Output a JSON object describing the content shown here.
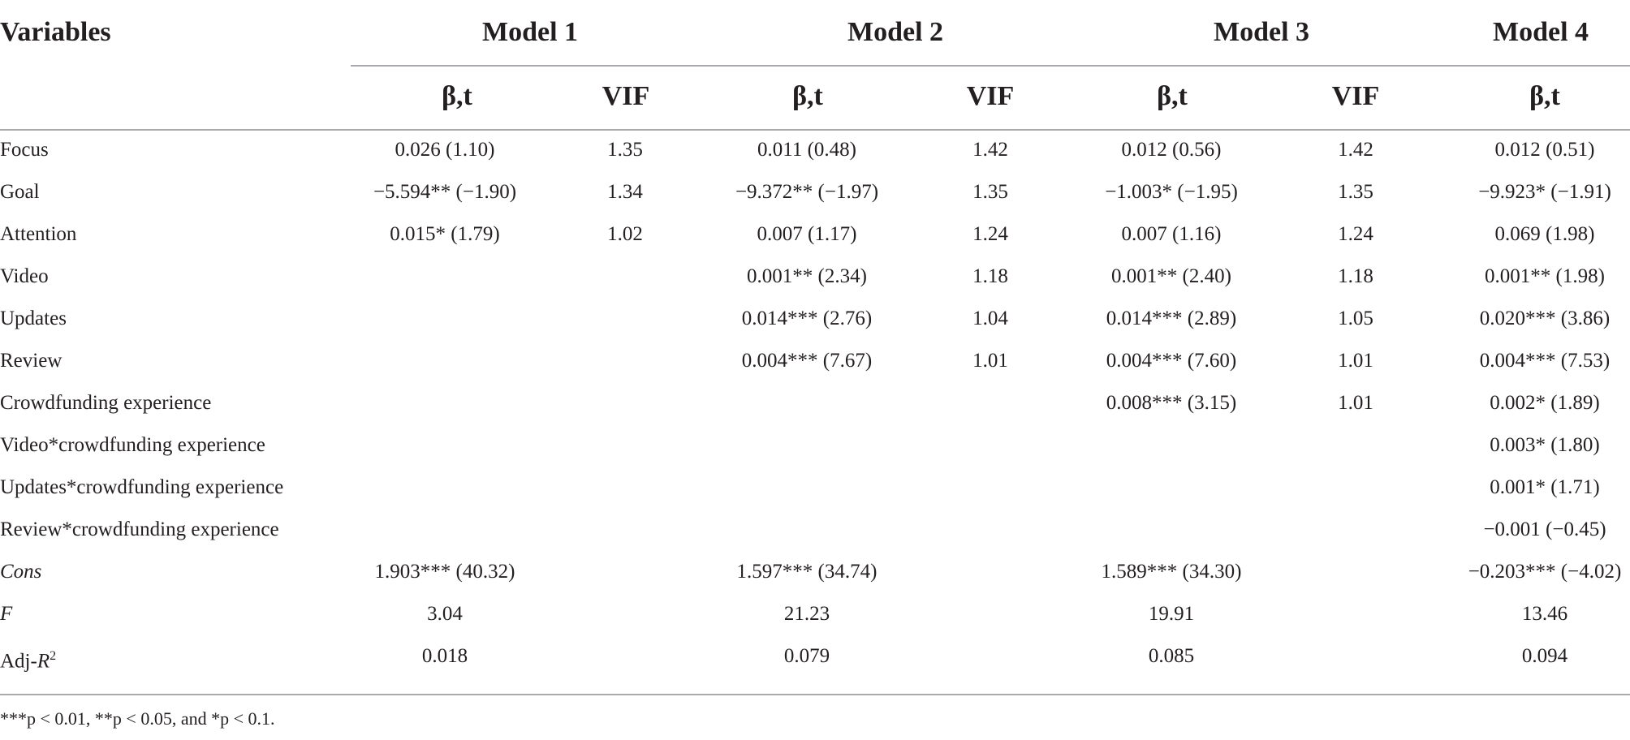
{
  "table": {
    "header": {
      "variables": "Variables",
      "models": [
        "Model 1",
        "Model 2",
        "Model 3",
        "Model 4"
      ],
      "subheaders": [
        "β,t",
        "VIF",
        "β,t",
        "VIF",
        "β,t",
        "VIF",
        "β,t"
      ]
    },
    "rows": [
      {
        "label": "Focus",
        "cells": [
          "0.026 (1.10)",
          "1.35",
          "0.011 (0.48)",
          "1.42",
          "0.012 (0.56)",
          "1.42",
          "0.012 (0.51)"
        ]
      },
      {
        "label": "Goal",
        "cells": [
          "−5.594** (−1.90)",
          "1.34",
          "−9.372** (−1.97)",
          "1.35",
          "−1.003* (−1.95)",
          "1.35",
          "−9.923* (−1.91)"
        ]
      },
      {
        "label": "Attention",
        "cells": [
          "0.015* (1.79)",
          "1.02",
          "0.007 (1.17)",
          "1.24",
          "0.007 (1.16)",
          "1.24",
          "0.069 (1.98)"
        ]
      },
      {
        "label": "Video",
        "cells": [
          "",
          "",
          "0.001** (2.34)",
          "1.18",
          "0.001** (2.40)",
          "1.18",
          "0.001** (1.98)"
        ]
      },
      {
        "label": "Updates",
        "cells": [
          "",
          "",
          "0.014*** (2.76)",
          "1.04",
          "0.014*** (2.89)",
          "1.05",
          "0.020*** (3.86)"
        ]
      },
      {
        "label": "Review",
        "cells": [
          "",
          "",
          "0.004*** (7.67)",
          "1.01",
          "0.004*** (7.60)",
          "1.01",
          "0.004*** (7.53)"
        ]
      },
      {
        "label": "Crowdfunding experience",
        "cells": [
          "",
          "",
          "",
          "",
          "0.008*** (3.15)",
          "1.01",
          "0.002* (1.89)"
        ]
      },
      {
        "label": "Video*crowdfunding experience",
        "cells": [
          "",
          "",
          "",
          "",
          "",
          "",
          "0.003* (1.80)"
        ]
      },
      {
        "label": "Updates*crowdfunding experience",
        "cells": [
          "",
          "",
          "",
          "",
          "",
          "",
          "0.001* (1.71)"
        ]
      },
      {
        "label": "Review*crowdfunding experience",
        "cells": [
          "",
          "",
          "",
          "",
          "",
          "",
          "−0.001 (−0.45)"
        ]
      },
      {
        "label": "Cons",
        "cells": [
          "1.903*** (40.32)",
          "",
          "1.597*** (34.74)",
          "",
          "1.589*** (34.30)",
          "",
          "−0.203*** (−4.02)"
        ]
      },
      {
        "label": "F",
        "cells": [
          "3.04",
          "",
          "21.23",
          "",
          "19.91",
          "",
          "13.46"
        ]
      },
      {
        "label_base": "Adj-",
        "label_var": "R",
        "label_sup": "2",
        "cells": [
          "0.018",
          "",
          "0.079",
          "",
          "0.085",
          "",
          "0.094"
        ]
      }
    ],
    "footnote": "***p < 0.01, **p < 0.05, and *p < 0.1."
  }
}
